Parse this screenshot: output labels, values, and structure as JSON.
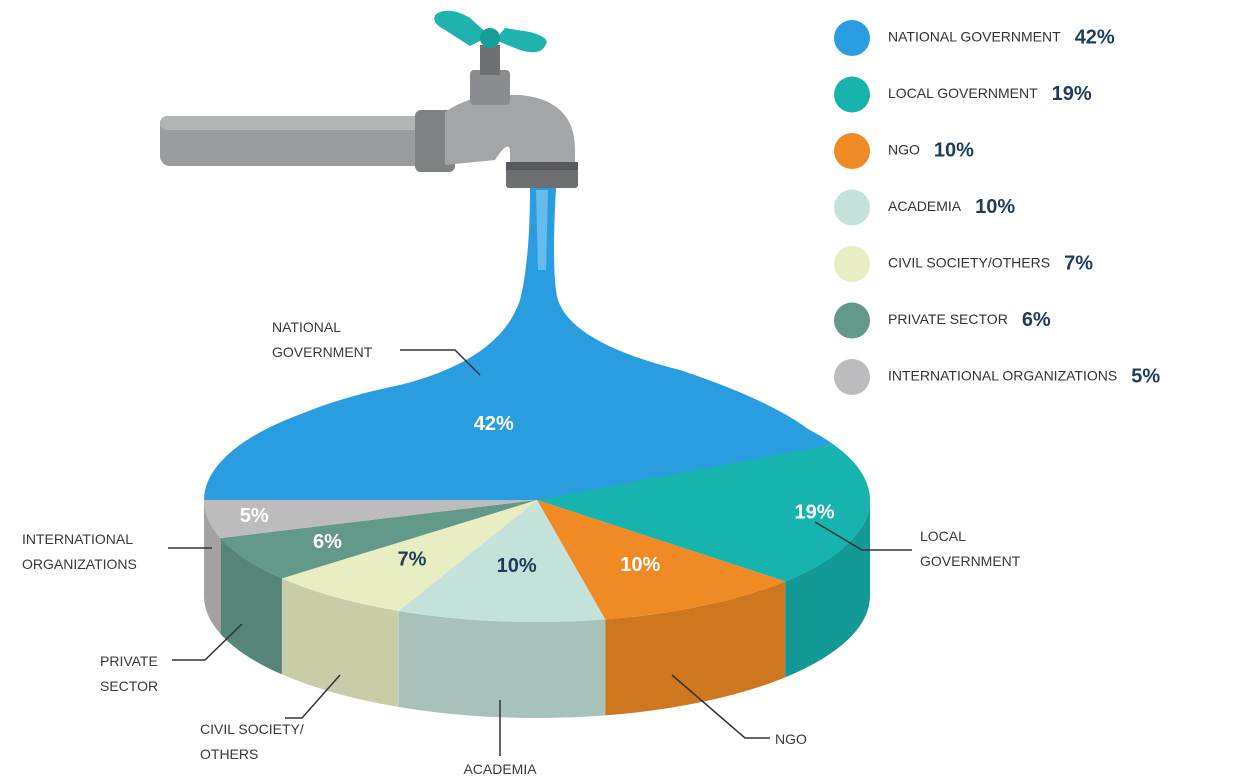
{
  "chart_data": {
    "type": "pie",
    "categories": [
      "NATIONAL GOVERNMENT",
      "LOCAL GOVERNMENT",
      "NGO",
      "ACADEMIA",
      "CIVIL SOCIETY/OTHERS",
      "PRIVATE SECTOR",
      "INTERNATIONAL ORGANIZATIONS"
    ],
    "values": [
      42,
      19,
      10,
      10,
      7,
      6,
      5
    ],
    "value_labels": [
      "42%",
      "19%",
      "10%",
      "10%",
      "7%",
      "6%",
      "5%"
    ],
    "colors": [
      "#2a9de0",
      "#17b3ae",
      "#f08a24",
      "#c2e2da",
      "#e9edc2",
      "#63998b",
      "#bcbcbe"
    ],
    "callout_labels": [
      [
        "NATIONAL",
        "GOVERNMENT"
      ],
      [
        "LOCAL",
        "GOVERNMENT"
      ],
      [
        "NGO"
      ],
      [
        "ACADEMIA"
      ],
      [
        "CIVIL SOCIETY/",
        "OTHERS"
      ],
      [
        "PRIVATE",
        "SECTOR"
      ],
      [
        "INTERNATIONAL",
        "ORGANIZATIONS"
      ]
    ]
  }
}
